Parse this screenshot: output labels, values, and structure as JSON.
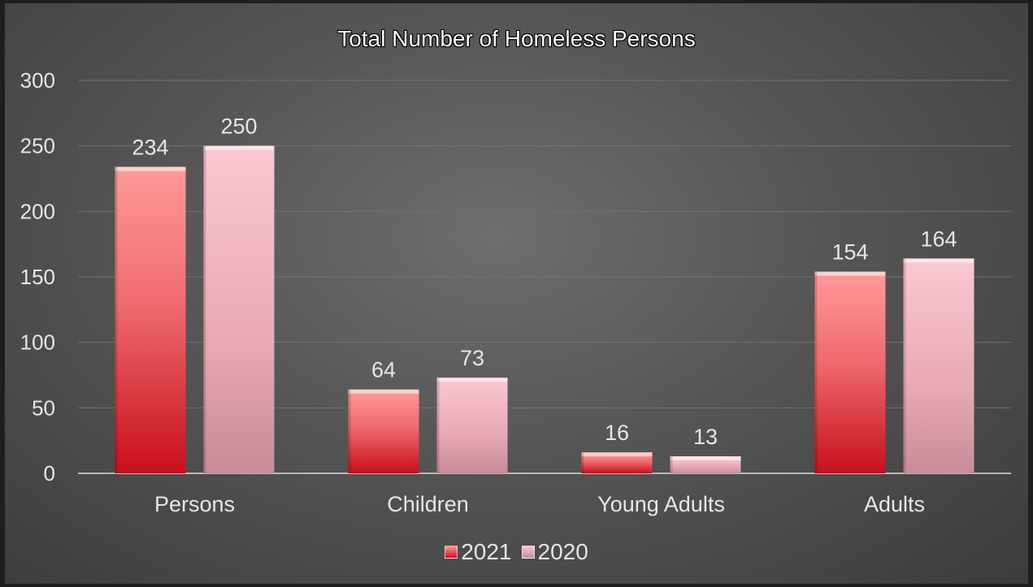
{
  "chart_data": {
    "type": "bar",
    "title": "Total Number of Homeless Persons",
    "categories": [
      "Persons",
      "Children",
      "Young Adults",
      "Adults"
    ],
    "series": [
      {
        "name": "2021",
        "values": [
          234,
          64,
          16,
          154
        ],
        "color": "#e8323c"
      },
      {
        "name": "2020",
        "values": [
          250,
          73,
          13,
          164
        ],
        "color": "#f4b6c2"
      }
    ],
    "ylim": [
      0,
      300
    ],
    "yticks": [
      0,
      50,
      100,
      150,
      200,
      250,
      300
    ],
    "grid": true,
    "legend_position": "bottom",
    "data_labels": true
  },
  "colors": {
    "background": "#5a5a5a",
    "text": "#e6e6e6",
    "grid": "#6f6f6f"
  }
}
